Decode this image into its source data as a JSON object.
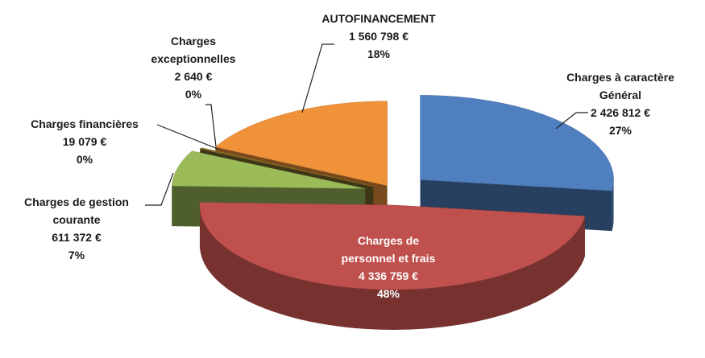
{
  "chart_data": {
    "type": "pie",
    "categories": [
      "Charges à caractère Général",
      "Charges de personnel et frais",
      "Charges de gestion courante",
      "Charges financières",
      "Charges exceptionnelles",
      "AUTOFINANCEMENT"
    ],
    "values": [
      2426812,
      4336759,
      611372,
      19079,
      2640,
      1560798
    ],
    "value_labels": [
      "2 426 812 €",
      "4 336 759 €",
      "611 372 €",
      "19 079 €",
      "2 640 €",
      "1 560 798 €"
    ],
    "percent_labels": [
      "27%",
      "48%",
      "7%",
      "0%",
      "0%",
      "18%"
    ],
    "colors": [
      "#4f7fbf",
      "#c0504d",
      "#9bbb59",
      "#7d6a2e",
      "#d9a81e",
      "#f0923a"
    ]
  }
}
